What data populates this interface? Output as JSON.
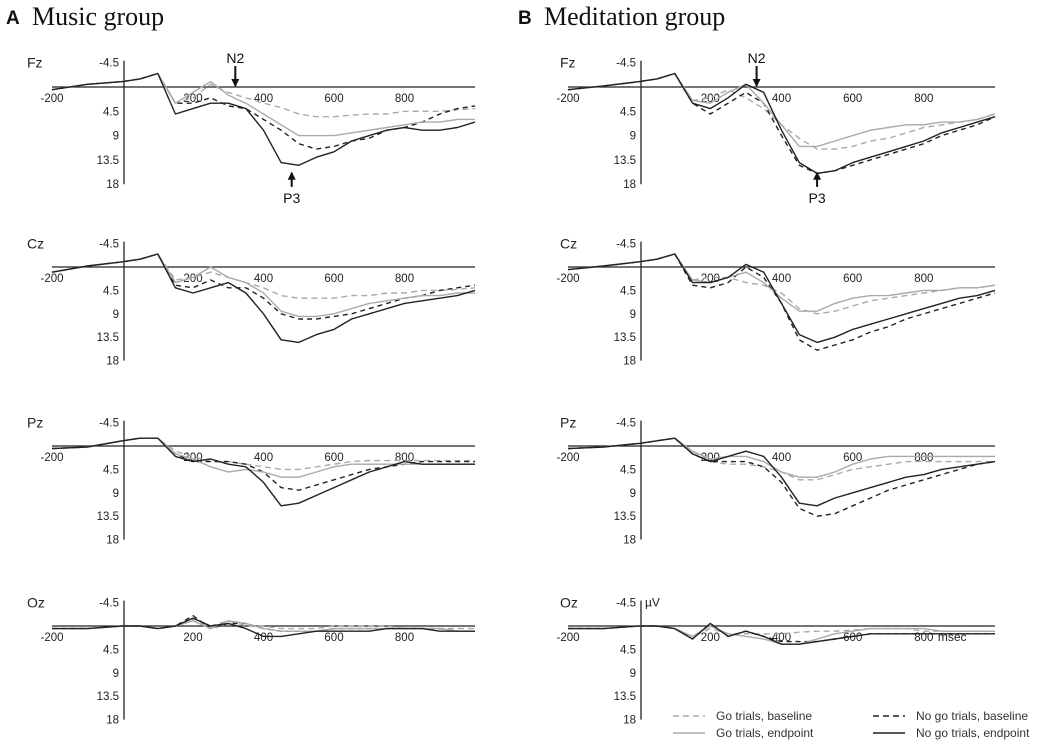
{
  "chart_data": {
    "type": "line",
    "panels": [
      {
        "letter": "A",
        "title": "Music group"
      },
      {
        "letter": "B",
        "title": "Meditation group"
      }
    ],
    "electrodes": [
      "Fz",
      "Cz",
      "Pz",
      "Oz"
    ],
    "xticks": [
      "-200",
      "200",
      "400",
      "600",
      "800"
    ],
    "xtick_values": [
      -200,
      200,
      400,
      600,
      800
    ],
    "yticks": [
      "-4.5",
      "4.5",
      "9",
      "13.5",
      "18"
    ],
    "ytick_values": [
      -4.5,
      4.5,
      9,
      13.5,
      18
    ],
    "xlim": [
      -200,
      1000
    ],
    "ylim": [
      -4.5,
      18
    ],
    "y_inverted": true,
    "xunit": "msec",
    "yunit": "µV",
    "annotations": {
      "n2": "N2",
      "p3": "P3"
    },
    "legend": [
      {
        "label": "Go trials, baseline",
        "color": "#aaaaaa",
        "dash": true
      },
      {
        "label": "No go trials, baseline",
        "color": "#222222",
        "dash": true
      },
      {
        "label": "Go trials, endpoint",
        "color": "#aaaaaa",
        "dash": false
      },
      {
        "label": "No go trials, endpoint",
        "color": "#222222",
        "dash": false
      }
    ],
    "series_x": [
      -200,
      -100,
      0,
      50,
      100,
      150,
      200,
      250,
      300,
      350,
      400,
      450,
      500,
      550,
      600,
      650,
      700,
      750,
      800,
      850,
      900,
      950,
      1000
    ],
    "series": {
      "music": {
        "Fz": [
          [
            0.5,
            -0.5,
            -1,
            -1.5,
            -2.5,
            3,
            2,
            -0.5,
            1,
            2,
            3,
            3.8,
            5,
            5.5,
            5.5,
            5.2,
            5,
            5,
            4.5,
            4.5,
            4.5,
            4.2,
            4
          ],
          [
            0.5,
            -0.5,
            -1,
            -1.5,
            -2.5,
            3,
            3,
            2,
            3.5,
            4,
            6,
            8,
            10.5,
            11.5,
            11,
            10,
            9.5,
            8,
            7.5,
            6.5,
            5,
            4,
            3.5
          ],
          [
            0.5,
            -0.5,
            -1,
            -1.5,
            -2.5,
            3,
            1,
            -1,
            1.5,
            3,
            5,
            7,
            9,
            9,
            9,
            8.5,
            8,
            7.5,
            7,
            6.5,
            6.5,
            6,
            6
          ],
          [
            0.5,
            -0.5,
            -1,
            -1.5,
            -2.5,
            5,
            4,
            3,
            3,
            4,
            8,
            14,
            14.5,
            13,
            12,
            10,
            9,
            8,
            7.5,
            8,
            8,
            7.5,
            6.5
          ]
        ],
        "Cz": [
          [
            1,
            -0.2,
            -1,
            -1.5,
            -2.5,
            2.5,
            2,
            1,
            2,
            3,
            4,
            5.5,
            6,
            6,
            6,
            5.5,
            5.5,
            5,
            5,
            4.5,
            4.5,
            4.3,
            4
          ],
          [
            1,
            -0.2,
            -1,
            -1.5,
            -2.5,
            3.5,
            4,
            2.5,
            4,
            4,
            6,
            9,
            10,
            10,
            9.5,
            9,
            8,
            7,
            6,
            5.5,
            4.5,
            4,
            3.5
          ],
          [
            1,
            -0.2,
            -1,
            -1.5,
            -2.5,
            3,
            2,
            0,
            2,
            3,
            5,
            8.5,
            9.5,
            9.5,
            9,
            8,
            7,
            6.5,
            6,
            5.5,
            5.5,
            5,
            5
          ],
          [
            1,
            -0.2,
            -1,
            -1.5,
            -2.5,
            4,
            5,
            4,
            3,
            5,
            9,
            14,
            14.5,
            13,
            12,
            10,
            9,
            8,
            7,
            6.5,
            6,
            5.5,
            4.5
          ]
        ],
        "Pz": [
          [
            0.5,
            0.2,
            -1,
            -1.5,
            -1.5,
            1,
            2,
            3,
            3,
            3.5,
            4,
            4.5,
            4.5,
            4,
            3.5,
            3,
            2.8,
            2.8,
            2.8,
            2.8,
            2.8,
            2.8,
            2.8
          ],
          [
            0.5,
            0.2,
            -1,
            -1.5,
            -1.5,
            1.5,
            3,
            3,
            3,
            3.5,
            5,
            8,
            8.5,
            7.5,
            6.5,
            5.5,
            4.5,
            4,
            3.5,
            3,
            3,
            3,
            3
          ],
          [
            0.5,
            0.2,
            -1,
            -1.5,
            -1.5,
            1.5,
            2.5,
            4,
            5,
            4.5,
            5,
            6,
            6,
            5,
            4,
            3.5,
            3.5,
            3.5,
            3.5,
            3.5,
            3.5,
            3.5,
            3.5
          ],
          [
            0.5,
            0.2,
            -1,
            -1.5,
            -1.5,
            2,
            3,
            2.5,
            3.5,
            4,
            7,
            11.5,
            11,
            9.5,
            8,
            6.5,
            5,
            4,
            3,
            3.5,
            3.5,
            3.5,
            3.5
          ]
        ],
        "Oz": [
          [
            0.5,
            0.5,
            0,
            0,
            0.5,
            0,
            -1,
            0,
            -1,
            0,
            0,
            0.5,
            0.5,
            0.5,
            0,
            0,
            0,
            0,
            0.5,
            0.5,
            0.5,
            0.5,
            0.5
          ],
          [
            0.5,
            0.5,
            0,
            0,
            0.5,
            0,
            -2,
            0.5,
            -0.5,
            -0.5,
            0.5,
            1,
            1,
            1,
            0.5,
            0.5,
            0.5,
            0.5,
            0.5,
            0.5,
            0.5,
            1,
            1
          ],
          [
            0.5,
            0.5,
            0,
            0,
            0.5,
            0,
            -1,
            0.5,
            -1,
            -0.5,
            0.5,
            1,
            1,
            1,
            0.5,
            0.5,
            0.5,
            0.5,
            0.5,
            0.5,
            0.5,
            1,
            1
          ],
          [
            0.5,
            0.5,
            0,
            0,
            0.5,
            0,
            -1.5,
            0,
            -0.5,
            0.5,
            2,
            2,
            1.5,
            1,
            1,
            1,
            1,
            0.5,
            0.5,
            0.5,
            1,
            1,
            1
          ]
        ]
      },
      "meditation": {
        "Fz": [
          [
            0.5,
            -0.2,
            -1,
            -1.5,
            -2.5,
            2.5,
            2,
            0.5,
            2,
            4,
            7,
            9.5,
            11.5,
            11.5,
            11,
            10,
            9.5,
            8.5,
            7.5,
            7,
            6.5,
            6,
            5
          ],
          [
            0.5,
            -0.2,
            -1,
            -1.5,
            -2.5,
            3,
            5,
            3,
            1,
            3,
            9,
            14.5,
            16,
            15.5,
            14.5,
            13.5,
            12.5,
            11.5,
            10.5,
            9,
            8,
            7,
            5.5
          ],
          [
            0.5,
            -0.2,
            -1,
            -1.5,
            -2.5,
            2.5,
            3,
            1,
            -0.5,
            3,
            7,
            11,
            11,
            10,
            9,
            8,
            7.5,
            7,
            7,
            6.5,
            6.5,
            6,
            5
          ],
          [
            0.5,
            -0.2,
            -1,
            -1.5,
            -2.5,
            3,
            4,
            2,
            -0.5,
            1,
            8,
            14,
            16,
            15.5,
            14,
            13,
            12,
            11,
            10,
            8.5,
            7.5,
            6.5,
            5.5
          ]
        ],
        "Cz": [
          [
            0.5,
            -0.2,
            -1,
            -1.5,
            -2.5,
            2.5,
            2,
            2,
            3,
            3.5,
            5,
            8,
            9,
            8.5,
            7.5,
            6.5,
            6,
            5.5,
            5,
            4.5,
            4,
            4,
            3.5
          ],
          [
            0.5,
            -0.2,
            -1,
            -1.5,
            -2.5,
            3.5,
            4,
            3,
            0,
            2,
            7,
            14,
            16,
            15,
            14,
            12.5,
            11.5,
            10,
            9,
            8,
            7,
            6,
            5
          ],
          [
            0.5,
            -0.2,
            -1,
            -1.5,
            -2.5,
            2.5,
            3,
            2,
            1,
            3,
            6,
            8.5,
            8.5,
            7,
            6,
            5.5,
            5.5,
            5,
            4.5,
            4.5,
            4,
            4,
            3.5
          ],
          [
            0.5,
            -0.2,
            -1,
            -1.5,
            -2.5,
            3,
            3,
            2,
            -0.5,
            1,
            7,
            13,
            14.5,
            13.5,
            12,
            11,
            10,
            9,
            8,
            7,
            6,
            5.5,
            4.5
          ]
        ],
        "Pz": [
          [
            0.5,
            0.2,
            -0.5,
            -1,
            -1.5,
            1,
            3,
            3.5,
            3.5,
            4,
            5,
            6.5,
            6.5,
            5.5,
            4.5,
            4,
            3.5,
            3,
            3,
            3,
            3,
            3,
            3
          ],
          [
            0.5,
            0.2,
            -0.5,
            -1,
            -1.5,
            1.5,
            3,
            3,
            3,
            4,
            7,
            12,
            13.5,
            13,
            11.5,
            10,
            8.5,
            7.5,
            6.5,
            5.5,
            4.5,
            3.5,
            3
          ],
          [
            0.5,
            0.2,
            -0.5,
            -1,
            -1.5,
            1,
            2.5,
            2,
            2,
            3,
            5,
            6,
            6,
            5,
            3.5,
            2.5,
            2,
            2,
            2,
            2,
            2,
            2,
            2
          ],
          [
            0.5,
            0.2,
            -0.5,
            -1,
            -1.5,
            1.5,
            3,
            2,
            1,
            2,
            6,
            11,
            11.5,
            10,
            9,
            8,
            7,
            6,
            5.5,
            4.5,
            4,
            3.5,
            3
          ]
        ],
        "Oz": [
          [
            0.5,
            0.5,
            0,
            0,
            0.5,
            2,
            0.5,
            1.5,
            1.5,
            1.5,
            1.5,
            1.2,
            1,
            1,
            0.8,
            0.5,
            0.5,
            0.5,
            1,
            1,
            1,
            1,
            1
          ],
          [
            0.5,
            0.5,
            0,
            0,
            0.5,
            2.5,
            -0.5,
            2,
            1,
            2,
            3,
            3,
            3,
            2.5,
            2,
            1.5,
            1.5,
            1.5,
            1.5,
            1.5,
            1.5,
            1.5,
            1.5
          ],
          [
            0.5,
            0.5,
            0,
            0,
            0.5,
            2,
            0,
            1.5,
            2,
            2.5,
            3.5,
            3.5,
            2.5,
            1.5,
            1,
            0.5,
            0.5,
            0.5,
            0.5,
            1,
            1,
            1,
            1
          ],
          [
            0.5,
            0.5,
            0,
            0,
            0.5,
            2.5,
            -0.5,
            2,
            1,
            2,
            3.5,
            3.5,
            3,
            2.5,
            2,
            1.5,
            1.5,
            1.5,
            1.5,
            1.5,
            1.5,
            1.5,
            1.5
          ]
        ]
      }
    }
  }
}
